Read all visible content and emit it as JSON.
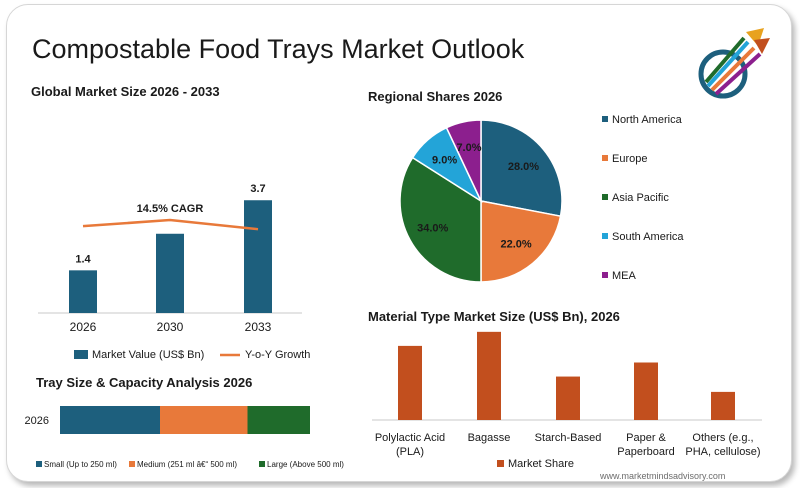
{
  "header": {
    "title": "Compostable Food Trays Market Outlook",
    "footer_url": "www.marketmindsadvisory.com"
  },
  "colors": {
    "navy": "#1d5f7d",
    "orange": "#e8793a",
    "green": "#1f6b2b",
    "sky": "#23a4d8",
    "purple": "#8c1f8e",
    "rust": "#c24f1e"
  },
  "chart_data": [
    {
      "id": "market_size",
      "type": "bar",
      "title": "Global Market Size 2026 - 2033",
      "categories": [
        "2026",
        "2030",
        "2033"
      ],
      "series": [
        {
          "name": "Market Value (US$ Bn)",
          "values": [
            1.4,
            2.6,
            3.7
          ],
          "labels": [
            "1.4",
            "",
            "3.7"
          ]
        },
        {
          "name": "Y-o-Y Growth",
          "type": "line",
          "values": [
            2.85,
            3.05,
            2.75
          ]
        }
      ],
      "annotation": "14.5% CAGR",
      "ylim": [
        0,
        4.2
      ],
      "legend_position": "bottom"
    },
    {
      "id": "regional_shares",
      "type": "pie",
      "title": "Regional Shares 2026",
      "labels": [
        "North America",
        "Europe",
        "Asia Pacific",
        "South America",
        "MEA"
      ],
      "values": [
        28.0,
        22.0,
        34.0,
        9.0,
        7.0
      ],
      "value_labels": [
        "28.0%",
        "22.0%",
        "34.0%",
        "9.0%",
        "7.0%"
      ],
      "legend_position": "right"
    },
    {
      "id": "tray_size",
      "type": "bar",
      "orientation": "horizontal-stacked",
      "title": "Tray Size & Capacity Analysis 2026",
      "categories": [
        "2026"
      ],
      "series": [
        {
          "name": "Small (Up to 250 ml)",
          "values": [
            40
          ]
        },
        {
          "name": "Medium (251 ml â€“ 500 ml)",
          "values": [
            35
          ]
        },
        {
          "name": "Large (Above 500 ml)",
          "values": [
            25
          ]
        }
      ],
      "legend_position": "bottom"
    },
    {
      "id": "material_type",
      "type": "bar",
      "title": "Material Type Market Size (US$ Bn), 2026",
      "categories": [
        "Polylactic Acid (PLA)",
        "Bagasse",
        "Starch-Based",
        "Paper & Paperboard",
        "Others (e.g., PHA, cellulose)"
      ],
      "series": [
        {
          "name": "Market Share",
          "values": [
            0.58,
            0.69,
            0.34,
            0.45,
            0.22
          ]
        }
      ],
      "ylim": [
        0,
        0.72
      ],
      "legend_position": "bottom"
    }
  ]
}
